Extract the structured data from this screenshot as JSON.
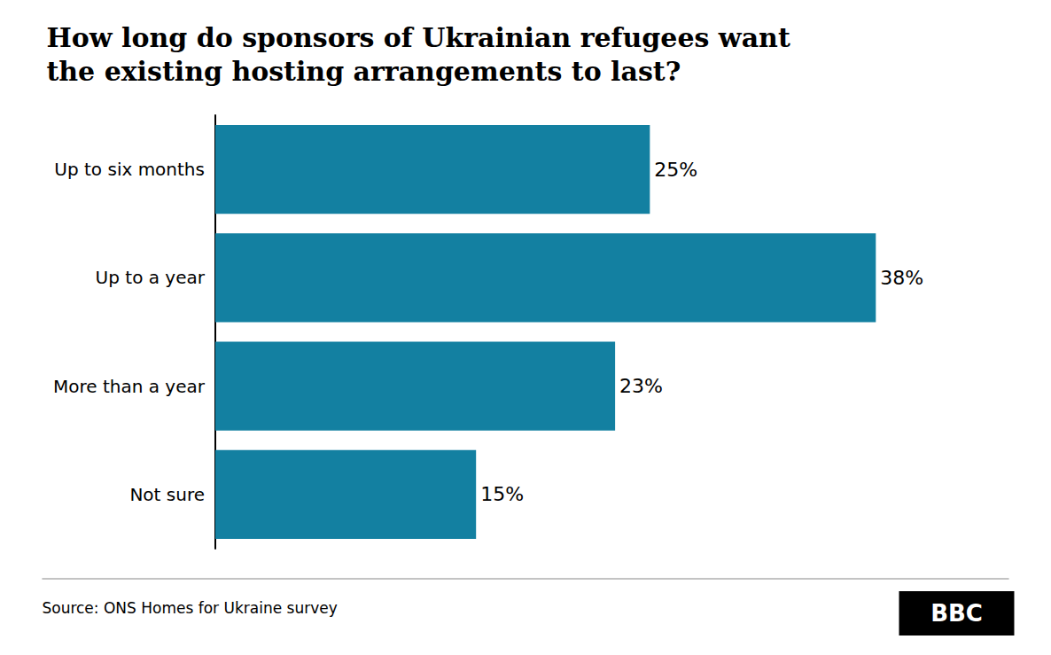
{
  "chart_data": {
    "type": "bar",
    "title": "How long do sponsors of Ukrainian refugees want\nthe existing hosting arrangements to last?",
    "categories": [
      "Up to six months",
      "Up to a year",
      "More than a year",
      "Not sure"
    ],
    "values": [
      25,
      38,
      23,
      15
    ],
    "value_labels": [
      "25%",
      "38%",
      "23%",
      "15%"
    ],
    "data_labels": true,
    "orientation": "horizontal",
    "color": "#1380a1",
    "xlim": [
      0,
      44
    ],
    "tick_labels": "y",
    "grid": false,
    "annotations": [
      "Source: ONS Homes for Ukraine survey",
      "BBC"
    ]
  }
}
